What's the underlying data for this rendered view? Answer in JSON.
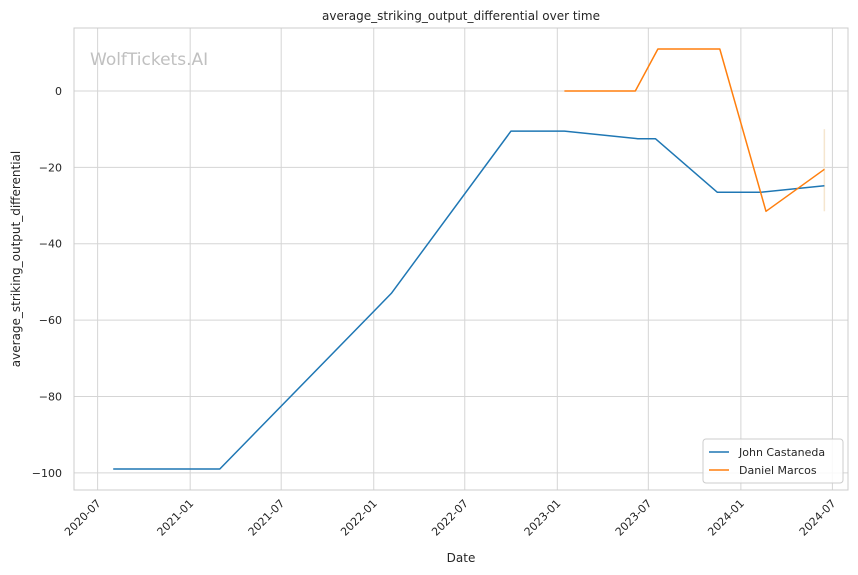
{
  "chart_data": {
    "type": "line",
    "title": "average_striking_output_differential over time",
    "xlabel": "Date",
    "ylabel": "average_striking_output_differential",
    "watermark": "WolfTickets.AI",
    "x_ticks": [
      "2020-07",
      "2021-01",
      "2021-07",
      "2022-01",
      "2022-07",
      "2023-01",
      "2023-07",
      "2024-01",
      "2024-07"
    ],
    "y_ticks": [
      0,
      -20,
      -40,
      -60,
      -80,
      -100
    ],
    "xlim": [
      "2020-05-15",
      "2024-08-01"
    ],
    "ylim": [
      -104.5,
      16.5
    ],
    "grid": true,
    "legend_position": "bottom-right",
    "series": [
      {
        "name": "John Castaneda",
        "color": "#1f77b4",
        "points": [
          {
            "x": "2020-08-01",
            "y": -99
          },
          {
            "x": "2021-03-01",
            "y": -99
          },
          {
            "x": "2022-02-05",
            "y": -53
          },
          {
            "x": "2022-10-01",
            "y": -10.5
          },
          {
            "x": "2023-01-15",
            "y": -10.5
          },
          {
            "x": "2023-06-10",
            "y": -12.5
          },
          {
            "x": "2023-07-15",
            "y": -12.5
          },
          {
            "x": "2023-11-15",
            "y": -26.5
          },
          {
            "x": "2024-02-10",
            "y": -26.5
          },
          {
            "x": "2024-06-15",
            "y": -24.8
          }
        ]
      },
      {
        "name": "Daniel Marcos",
        "color": "#ff7f0e",
        "points": [
          {
            "x": "2023-01-15",
            "y": 0
          },
          {
            "x": "2023-06-05",
            "y": 0
          },
          {
            "x": "2023-07-20",
            "y": 11
          },
          {
            "x": "2023-11-20",
            "y": 11
          },
          {
            "x": "2024-02-20",
            "y": -31.5
          },
          {
            "x": "2024-06-15",
            "y": -20.5
          }
        ]
      }
    ],
    "error_band": {
      "x": "2024-06-15",
      "y_low": -31.5,
      "y_high": -10,
      "color": "#f5e6cf"
    }
  }
}
